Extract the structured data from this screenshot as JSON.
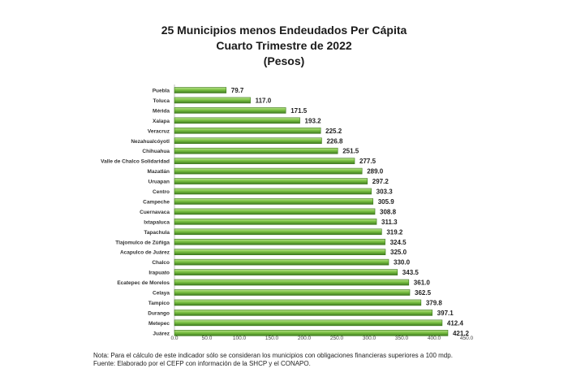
{
  "chart_data": {
    "type": "bar",
    "orientation": "horizontal",
    "title": "25 Municipios menos Endeudados Per Cápita",
    "subtitle": "Cuarto Trimestre de 2022",
    "unit_label": "(Pesos)",
    "categories": [
      "Puebla",
      "Toluca",
      "Mérida",
      "Xalapa",
      "Veracruz",
      "Nezahualcóyotl",
      "Chihuahua",
      "Valle de Chalco Solidaridad",
      "Mazatlán",
      "Uruapan",
      "Centro",
      "Campeche",
      "Cuernavaca",
      "Ixtapaluca",
      "Tapachula",
      "Tlajomulco de Zúñiga",
      "Acapulco de Juárez",
      "Chalco",
      "Irapuato",
      "Ecatepec de Morelos",
      "Celaya",
      "Tampico",
      "Durango",
      "Metepec",
      "Juárez"
    ],
    "values": [
      79.7,
      117.0,
      171.5,
      193.2,
      225.2,
      226.8,
      251.5,
      277.5,
      289.0,
      297.2,
      303.3,
      305.9,
      308.8,
      311.3,
      319.2,
      324.5,
      325.0,
      330.0,
      343.5,
      361.0,
      362.5,
      379.8,
      397.1,
      412.4,
      421.2
    ],
    "value_labels": [
      "79.7",
      "117.0",
      "171.5",
      "193.2",
      "225.2",
      "226.8",
      "251.5",
      "277.5",
      "289.0",
      "297.2",
      "303.3",
      "305.9",
      "308.8",
      "311.3",
      "319.2",
      "324.5",
      "325.0",
      "330.0",
      "343.5",
      "361.0",
      "362.5",
      "379.8",
      "397.1",
      "412.4",
      "421.2"
    ],
    "xlim": [
      0,
      450
    ],
    "x_ticks": [
      "0.0",
      "50.0",
      "100.0",
      "150.0",
      "200.0",
      "250.0",
      "300.0",
      "350.0",
      "400.0",
      "450.0"
    ],
    "grid": false,
    "legend": "none",
    "bar_color": "#7ac143",
    "bar_highlight_color": "#b9e08a",
    "bar_border_color": "#3e7a1f"
  },
  "notes": {
    "nota": "Nota: Para el cálculo de este indicador sólo se consideran los municipios con obligaciones financieras superiores a 100 mdp.",
    "fuente": "Fuente:  Elaborado por el CEFP con información de la SHCP y el CONAPO."
  }
}
